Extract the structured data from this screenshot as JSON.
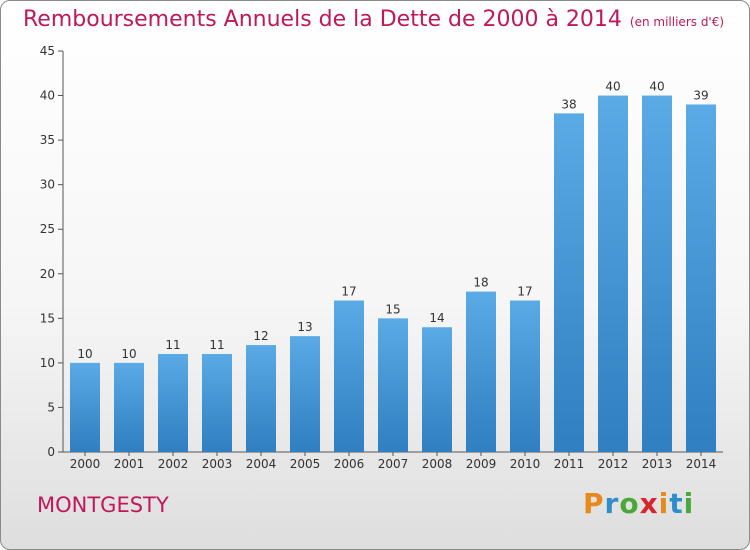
{
  "header": {
    "title": "Remboursements Annuels de la Dette de 2000 à 2014",
    "subtitle": "(en milliers d'€)"
  },
  "footer": {
    "town": "MONTGESTY",
    "logo_letters": [
      "P",
      "r",
      "o",
      "x",
      "i",
      "t",
      "i"
    ],
    "logo_colors": [
      "#e9891a",
      "#2c8fc9",
      "#4aa83a",
      "#d5262b",
      "#e9891a",
      "#2c8fc9",
      "#4aa83a"
    ]
  },
  "colors": {
    "bar_top": "#5aaae6",
    "bar_bottom": "#2f7fc1",
    "title": "#c0185b",
    "axis": "#555555"
  },
  "chart_data": {
    "type": "bar",
    "categories": [
      "2000",
      "2001",
      "2002",
      "2003",
      "2004",
      "2005",
      "2006",
      "2007",
      "2008",
      "2009",
      "2010",
      "2011",
      "2012",
      "2013",
      "2014"
    ],
    "values": [
      10,
      10,
      11,
      11,
      12,
      13,
      17,
      15,
      14,
      18,
      17,
      38,
      40,
      40,
      39
    ],
    "title": "Remboursements Annuels de la Dette de 2000 à 2014",
    "subtitle": "(en milliers d'€)",
    "xlabel": "",
    "ylabel": "",
    "ylim": [
      0,
      45
    ],
    "yticks": [
      0,
      5,
      10,
      15,
      20,
      25,
      30,
      35,
      40,
      45
    ],
    "grid": false,
    "data_labels": true,
    "legend": "none"
  }
}
